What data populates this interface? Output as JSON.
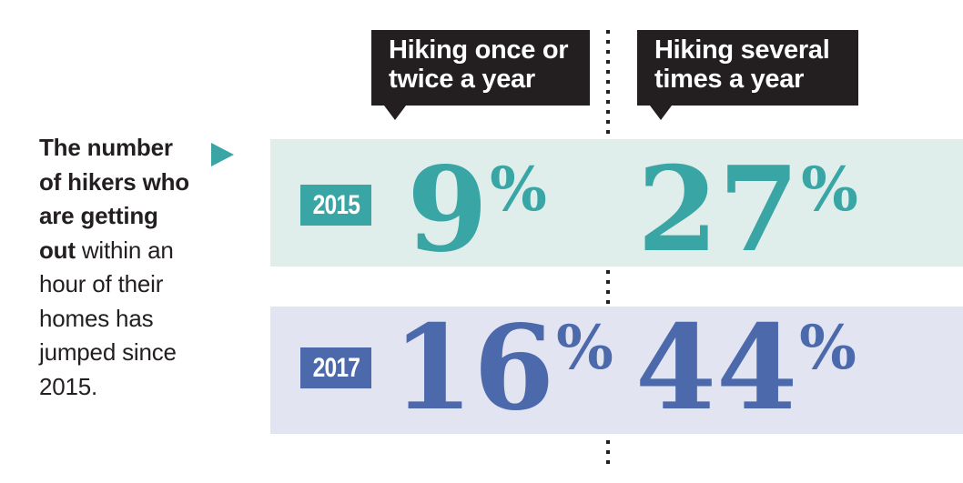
{
  "colors": {
    "teal_accent": "#3aa5a5",
    "teal_band": "#dfeeea",
    "blue_accent": "#4c69ac",
    "blue_band": "#e2e4f1",
    "bubble_black": "#231f20",
    "text_black": "#231f20",
    "white": "#ffffff"
  },
  "intro": {
    "emphasis": "The number of hikers who are getting out",
    "rest": "within an hour of their homes has jumped since 2015.",
    "pointer_icon": "triangle-right-icon"
  },
  "headers": {
    "col1": "Hiking once or\ntwice a year",
    "col2": "Hiking several\ntimes a year"
  },
  "rows": [
    {
      "year": "2015",
      "col1_number": "9",
      "col1_unit": "%",
      "col2_number": "27",
      "col2_unit": "%"
    },
    {
      "year": "2017",
      "col1_number": "16",
      "col1_unit": "%",
      "col2_number": "44",
      "col2_unit": "%"
    }
  ],
  "chart_data": {
    "type": "table",
    "title": "The number of hikers who are getting out within an hour of their homes has jumped since 2015.",
    "categories": [
      "Hiking once or twice a year",
      "Hiking several times a year"
    ],
    "series": [
      {
        "name": "2015",
        "values": [
          9,
          27
        ],
        "unit": "%",
        "accent_color": "#3aa5a5",
        "band_color": "#dfeeea"
      },
      {
        "name": "2017",
        "values": [
          16,
          44
        ],
        "unit": "%",
        "accent_color": "#4c69ac",
        "band_color": "#e2e4f1"
      }
    ],
    "layout": {
      "divider": "dotted-vertical",
      "header_style": "black-speech-bubbles"
    }
  }
}
